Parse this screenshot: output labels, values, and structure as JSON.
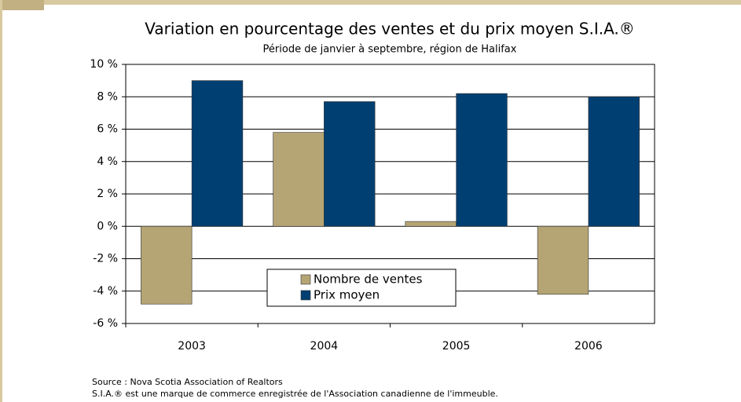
{
  "chart_data": {
    "type": "bar",
    "title": "Variation en pourcentage des ventes et du prix moyen S.I.A.®",
    "subtitle": "Période de janvier à septembre, région de Halifax",
    "categories": [
      "2003",
      "2004",
      "2005",
      "2006"
    ],
    "series": [
      {
        "name": "Nombre de ventes",
        "color": "#b5a574",
        "values": [
          -4.8,
          5.8,
          0.3,
          -4.2
        ]
      },
      {
        "name": "Prix moyen",
        "color": "#003f72",
        "values": [
          9.0,
          7.7,
          8.2,
          8.0
        ]
      }
    ],
    "ylim": [
      -6,
      10
    ],
    "yticks": [
      {
        "value": -6,
        "label": "-6 %"
      },
      {
        "value": -4,
        "label": "-4 %"
      },
      {
        "value": -2,
        "label": "-2 %"
      },
      {
        "value": 0,
        "label": "0 %"
      },
      {
        "value": 2,
        "label": "2 %"
      },
      {
        "value": 4,
        "label": "4 %"
      },
      {
        "value": 6,
        "label": "6 %"
      },
      {
        "value": 8,
        "label": "8 %"
      },
      {
        "value": 10,
        "label": "10 %"
      }
    ],
    "grid": true,
    "legend": "bottom",
    "source": "Source : Nova Scotia Association of Realtors",
    "note": "S.I.A.® est une marque de commerce enregistrée de l'Association canadienne de l'immeuble."
  }
}
